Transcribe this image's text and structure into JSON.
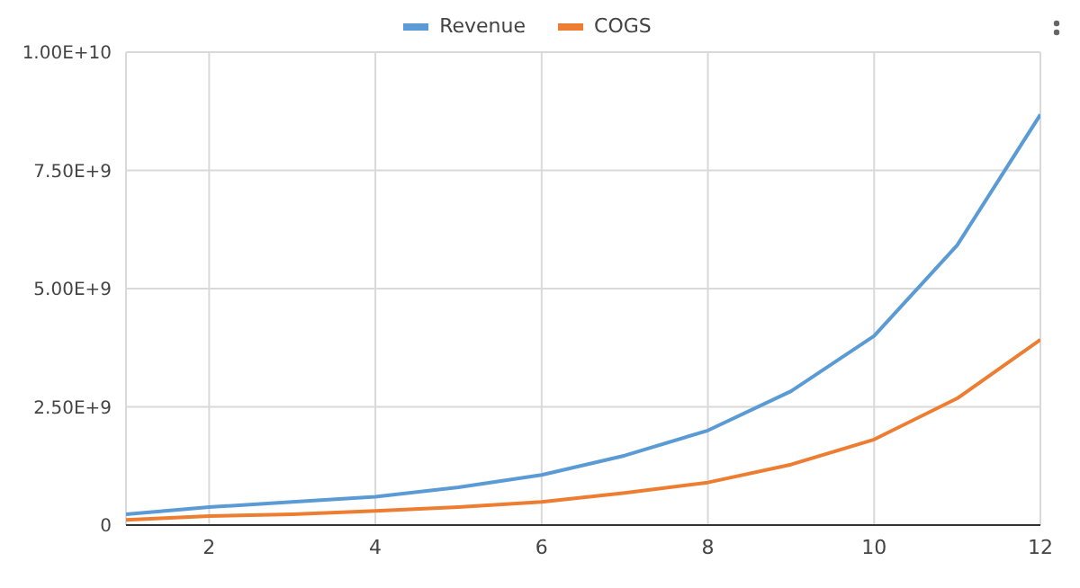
{
  "chart_data": {
    "type": "line",
    "x": [
      1,
      2,
      3,
      4,
      5,
      6,
      7,
      8,
      9,
      10,
      11,
      12
    ],
    "series": [
      {
        "name": "Revenue",
        "color": "#5b9bd5",
        "values": [
          230000000,
          380000000,
          490000000,
          600000000,
          800000000,
          1060000000,
          1470000000,
          2000000000,
          2830000000,
          4000000000,
          5920000000,
          8680000000
        ]
      },
      {
        "name": "COGS",
        "color": "#ed7d31",
        "values": [
          110000000,
          190000000,
          230000000,
          300000000,
          380000000,
          490000000,
          680000000,
          900000000,
          1280000000,
          1810000000,
          2680000000,
          3920000000
        ]
      }
    ],
    "xlim": [
      1,
      12
    ],
    "xticks": [
      2,
      4,
      6,
      8,
      10,
      12
    ],
    "ylim": [
      0,
      10000000000
    ],
    "yticks": [
      {
        "value": 0,
        "label": "0"
      },
      {
        "value": 2500000000,
        "label": "2.50E+9"
      },
      {
        "value": 5000000000,
        "label": "5.00E+9"
      },
      {
        "value": 7500000000,
        "label": "7.50E+9"
      },
      {
        "value": 10000000000,
        "label": "1.00E+10"
      }
    ],
    "grid": true,
    "legend": "top",
    "marker": "none",
    "line_style": "solid"
  }
}
